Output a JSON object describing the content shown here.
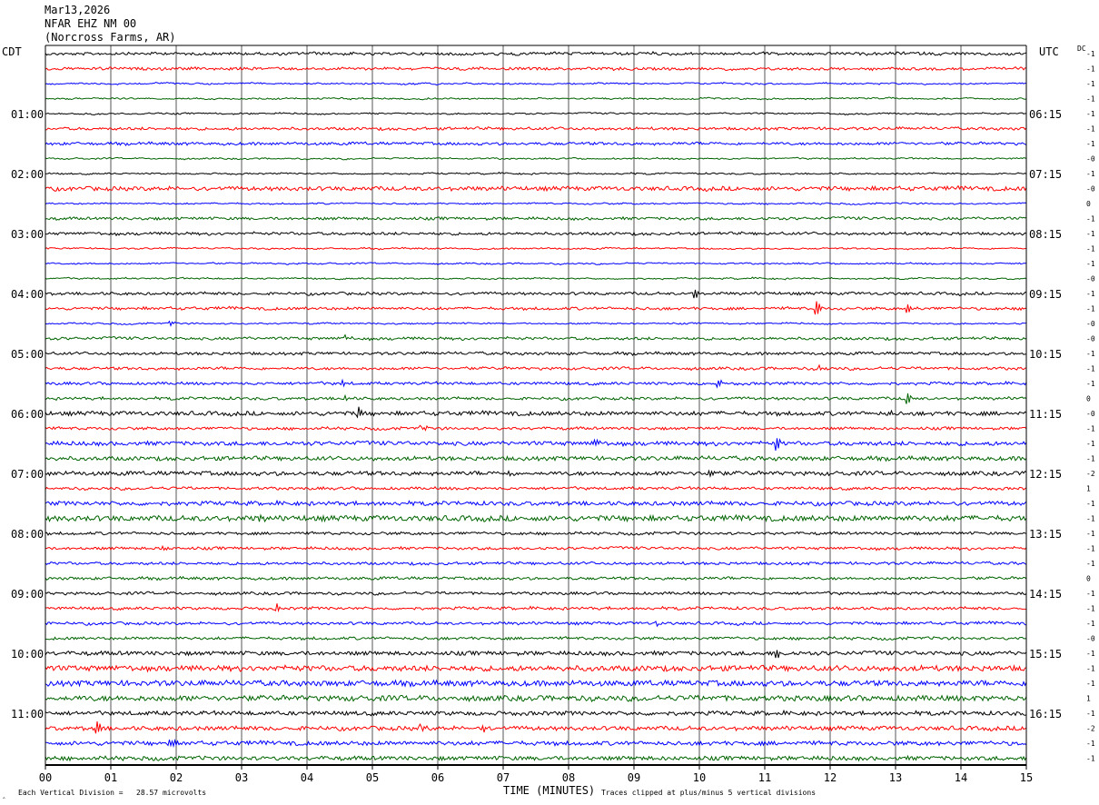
{
  "header": {
    "date": "Mar13,2026",
    "station": "NFAR EHZ NM 00",
    "location": "(Norcross Farms, AR)"
  },
  "left_tz": "CDT",
  "right_tz": "UTC",
  "dc_label": "DC",
  "footer": {
    "left": "Each Vertical Division =   28.57 microvolts",
    "center": "TIME (MINUTES)",
    "right": "Traces clipped at plus/minus 5 vertical divisions",
    "corner": "‸"
  },
  "colors": {
    "trace_cycle": [
      "#000000",
      "#ff0000",
      "#0000ff",
      "#006400"
    ],
    "grid": "#555555",
    "frame": "#000000"
  },
  "chart_data": {
    "type": "line",
    "title": "Mar13,2026 NFAR EHZ NM 00 (Norcross Farms, AR)",
    "xlabel": "TIME (MINUTES)",
    "ylabel": "",
    "xlim": [
      0,
      15
    ],
    "x_ticks": [
      "00",
      "01",
      "02",
      "03",
      "04",
      "05",
      "06",
      "07",
      "08",
      "09",
      "10",
      "11",
      "12",
      "13",
      "14",
      "15"
    ],
    "minutes_per_line": 15,
    "line_count": 48,
    "left_time_labels": [
      {
        "line": 4,
        "label": "01:00"
      },
      {
        "line": 8,
        "label": "02:00"
      },
      {
        "line": 12,
        "label": "03:00"
      },
      {
        "line": 16,
        "label": "04:00"
      },
      {
        "line": 20,
        "label": "05:00"
      },
      {
        "line": 24,
        "label": "06:00"
      },
      {
        "line": 28,
        "label": "07:00"
      },
      {
        "line": 32,
        "label": "08:00"
      },
      {
        "line": 36,
        "label": "09:00"
      },
      {
        "line": 40,
        "label": "10:00"
      },
      {
        "line": 44,
        "label": "11:00"
      }
    ],
    "right_time_labels": [
      {
        "line": 4,
        "label": "06:15"
      },
      {
        "line": 8,
        "label": "07:15"
      },
      {
        "line": 12,
        "label": "08:15"
      },
      {
        "line": 16,
        "label": "09:15"
      },
      {
        "line": 20,
        "label": "10:15"
      },
      {
        "line": 24,
        "label": "11:15"
      },
      {
        "line": 28,
        "label": "12:15"
      },
      {
        "line": 32,
        "label": "13:15"
      },
      {
        "line": 36,
        "label": "14:15"
      },
      {
        "line": 40,
        "label": "15:15"
      },
      {
        "line": 44,
        "label": "16:15"
      }
    ],
    "dc_offsets": [
      "-1",
      "-1",
      "-1",
      "-1",
      "-1",
      "-1",
      "-1",
      "-0",
      "-1",
      "-0",
      "0",
      "-1",
      "-1",
      "-1",
      "-1",
      "-0",
      "-1",
      "-1",
      "-0",
      "-0",
      "-1",
      "-1",
      "-1",
      "0",
      "-0",
      "-1",
      "-1",
      "-1",
      "-2",
      "1",
      "-1",
      "-1",
      "-1",
      "-1",
      "-1",
      "0",
      "-1",
      "-1",
      "-1",
      "-0",
      "-1",
      "-1",
      "-1",
      "1",
      "-1",
      "-2",
      "-1",
      "-1"
    ],
    "noise_level": [
      2,
      2,
      1,
      1,
      1,
      2,
      2,
      1,
      1,
      3,
      1,
      2,
      2,
      1,
      1,
      1,
      2,
      2,
      1,
      2,
      2,
      2,
      2,
      2,
      3,
      2,
      3,
      3,
      3,
      2,
      3,
      4,
      2,
      2,
      2,
      2,
      2,
      2,
      2,
      2,
      3,
      4,
      4,
      4,
      3,
      3,
      3,
      3
    ],
    "events": [
      {
        "line": 16,
        "minute": 9.95,
        "amp": 5
      },
      {
        "line": 17,
        "minute": 11.8,
        "amp": 8
      },
      {
        "line": 17,
        "minute": 13.2,
        "amp": 6
      },
      {
        "line": 18,
        "minute": 1.9,
        "amp": 4
      },
      {
        "line": 19,
        "minute": 4.6,
        "amp": 4
      },
      {
        "line": 21,
        "minute": 11.85,
        "amp": 5
      },
      {
        "line": 22,
        "minute": 4.55,
        "amp": 4
      },
      {
        "line": 22,
        "minute": 10.3,
        "amp": 4
      },
      {
        "line": 23,
        "minute": 4.6,
        "amp": 5
      },
      {
        "line": 23,
        "minute": 13.2,
        "amp": 6
      },
      {
        "line": 24,
        "minute": 4.8,
        "amp": 6
      },
      {
        "line": 24,
        "minute": 12.9,
        "amp": 5
      },
      {
        "line": 25,
        "minute": 5.75,
        "amp": 5
      },
      {
        "line": 26,
        "minute": 8.4,
        "amp": 5
      },
      {
        "line": 26,
        "minute": 11.2,
        "amp": 6
      },
      {
        "line": 28,
        "minute": 7.1,
        "amp": 5
      },
      {
        "line": 28,
        "minute": 10.15,
        "amp": 5
      },
      {
        "line": 31,
        "minute": 3.25,
        "amp": 6
      },
      {
        "line": 33,
        "minute": 1.75,
        "amp": 6
      },
      {
        "line": 37,
        "minute": 3.55,
        "amp": 5
      },
      {
        "line": 38,
        "minute": 9.35,
        "amp": 4
      },
      {
        "line": 40,
        "minute": 11.2,
        "amp": 5
      },
      {
        "line": 45,
        "minute": 0.8,
        "amp": 7
      },
      {
        "line": 45,
        "minute": 5.75,
        "amp": 7
      },
      {
        "line": 45,
        "minute": 6.7,
        "amp": 5
      },
      {
        "line": 46,
        "minute": 1.9,
        "amp": 5
      }
    ],
    "grid": true
  }
}
